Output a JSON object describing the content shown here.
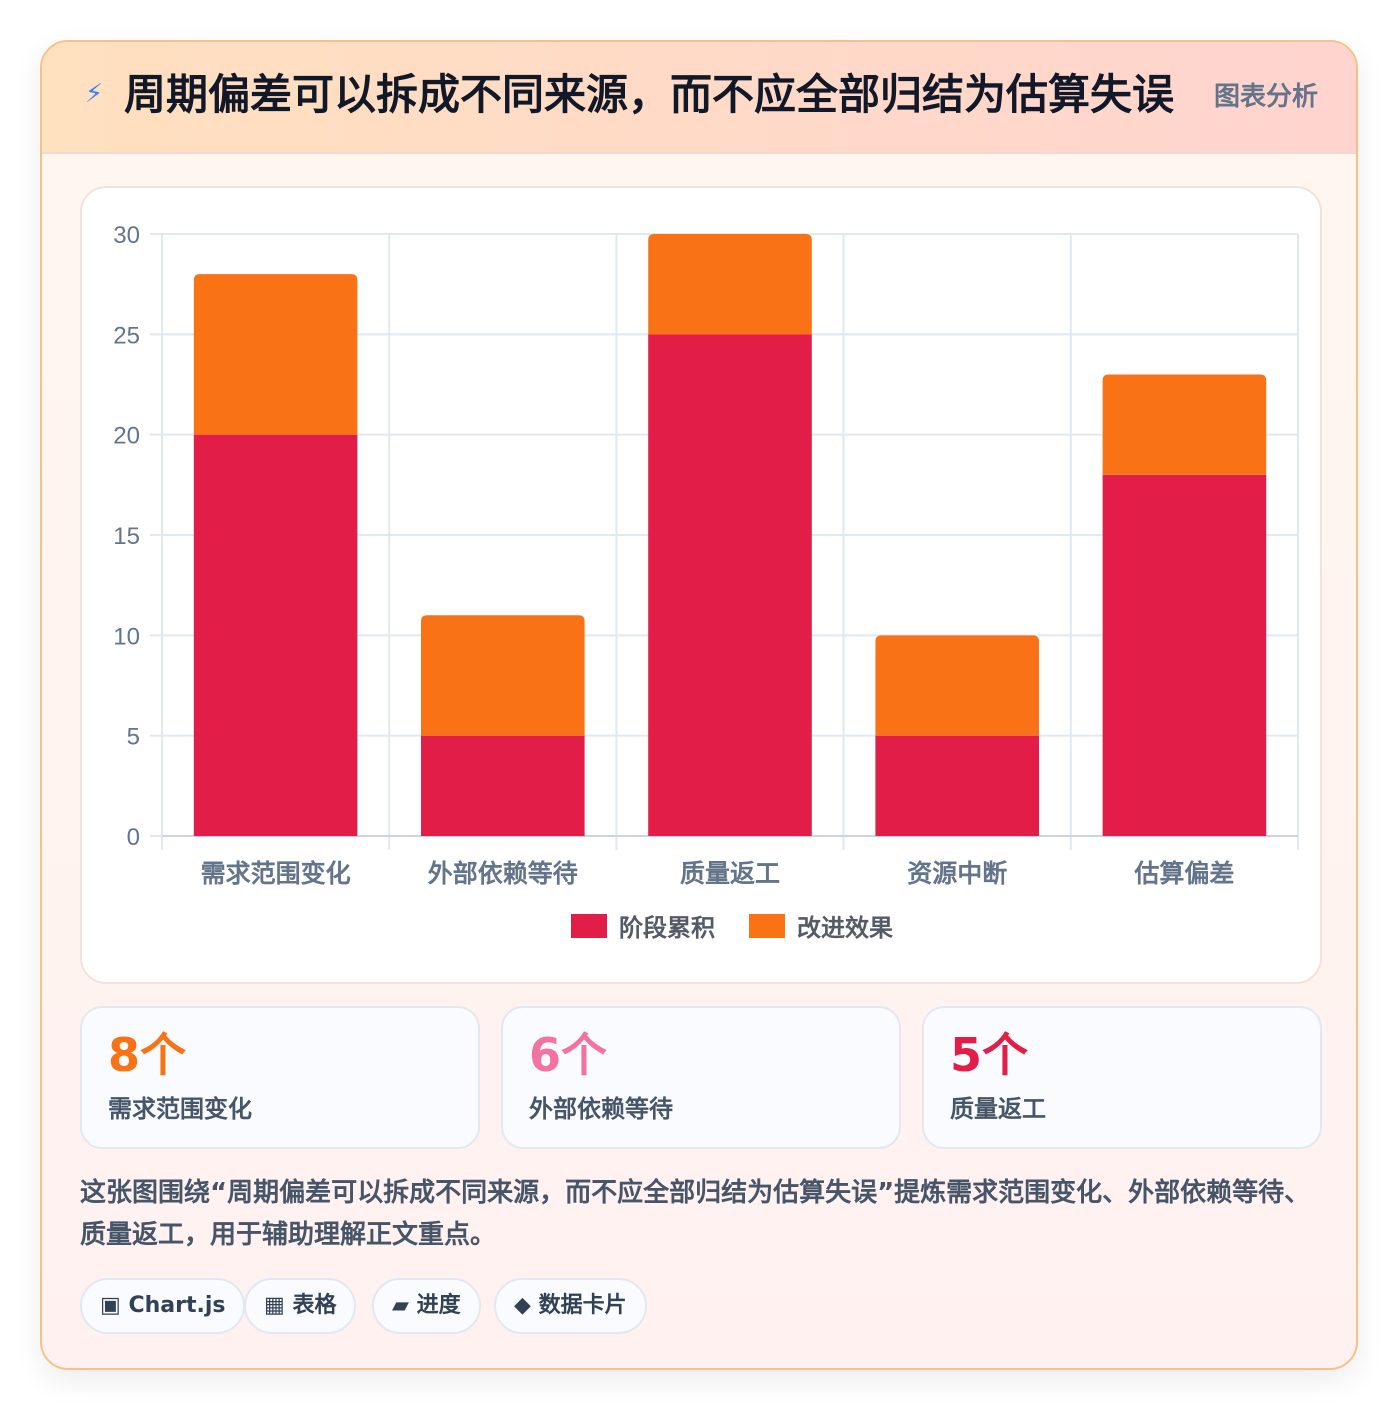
{
  "header": {
    "icon": "lightning-icon",
    "icon_glyph": "⚡",
    "title": "周期偏差可以拆成不同来源，而不应全部归结为估算失误",
    "badge": "图表分析"
  },
  "chart_data": {
    "type": "bar",
    "stacked": true,
    "categories": [
      "需求范围变化",
      "外部依赖等待",
      "质量返工",
      "资源中断",
      "估算偏差"
    ],
    "series": [
      {
        "name": "阶段累积",
        "values": [
          20,
          5,
          25,
          5,
          18
        ],
        "color": "#e11d48"
      },
      {
        "name": "改进效果",
        "values": [
          8,
          6,
          5,
          5,
          5
        ],
        "color": "#f97316"
      }
    ],
    "title": "",
    "xlabel": "",
    "ylabel": "",
    "ylim": [
      0,
      30
    ],
    "yticks": [
      0,
      5,
      10,
      15,
      20,
      25,
      30
    ],
    "grid": true,
    "legend": "bottom"
  },
  "stats": [
    {
      "value": "8个",
      "label": "需求范围变化",
      "color": "#f97316"
    },
    {
      "value": "6个",
      "label": "外部依赖等待",
      "color": "#f472a0"
    },
    {
      "value": "5个",
      "label": "质量返工",
      "color": "#e11d48"
    }
  ],
  "summary": "这张图围绕“周期偏差可以拆成不同来源，而不应全部归结为估算失误”提炼需求范围变化、外部依赖等待、质量返工，用于辅助理解正文重点。",
  "tags": [
    {
      "icon": "chart-icon",
      "glyph": "▣",
      "label": "Chart.js"
    },
    {
      "icon": "table-icon",
      "glyph": "▦",
      "label": "表格"
    },
    {
      "icon": "progress-icon",
      "glyph": "▰",
      "label": "进度"
    },
    {
      "icon": "data-card-icon",
      "glyph": "◆",
      "label": "数据卡片"
    }
  ]
}
